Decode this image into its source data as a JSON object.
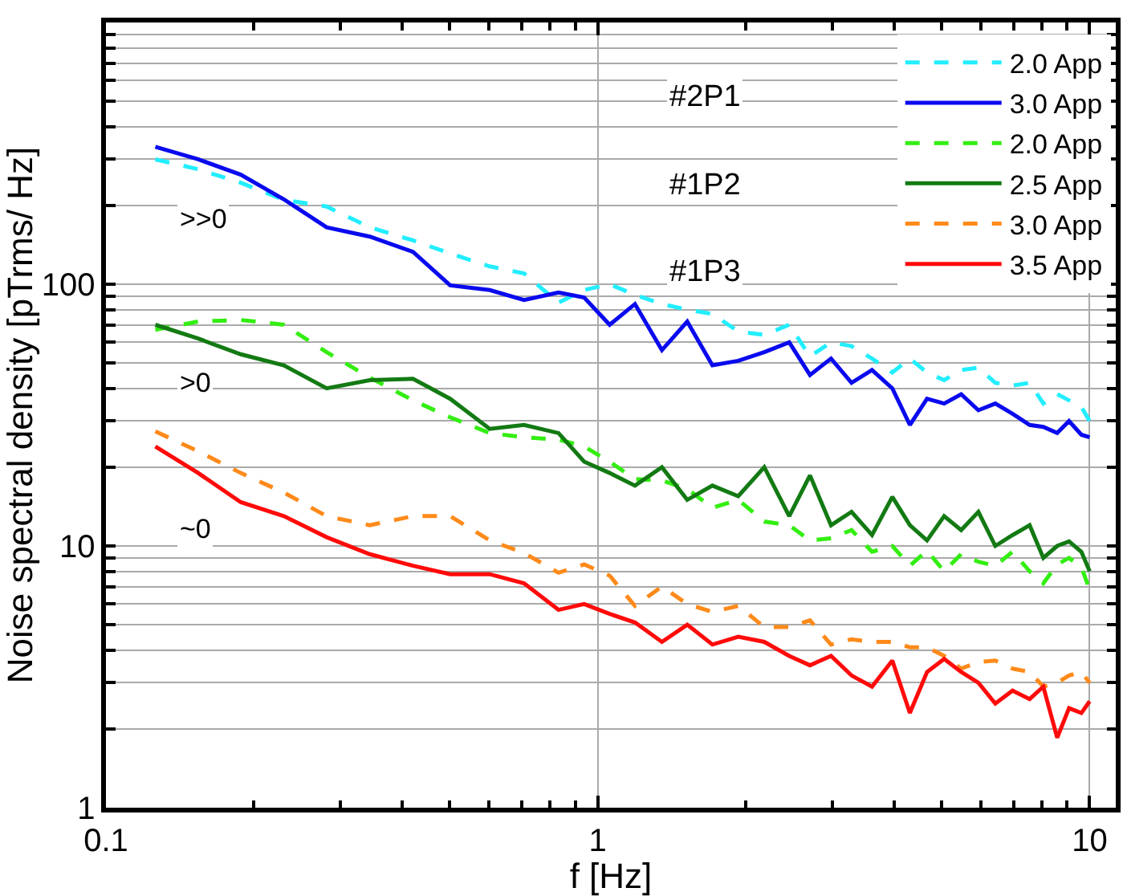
{
  "chart_data": {
    "type": "line",
    "xlabel": "f [Hz]",
    "ylabel": "Noise spectral density [pTrms/ Hz]",
    "log": "xy",
    "xlim": [
      0.1,
      11.3
    ],
    "xticks": [
      0.1,
      1,
      10
    ],
    "ylim": [
      1,
      1000
    ],
    "yticks": [
      1,
      {
        "value": 2,
        "label": null
      },
      {
        "value": 3,
        "label": null
      },
      {
        "value": 4,
        "label": null
      },
      {
        "value": 5,
        "label": null
      },
      {
        "value": 6,
        "label": null
      },
      {
        "value": 7,
        "label": null
      },
      {
        "value": 8,
        "label": null
      },
      {
        "value": 9,
        "label": null
      },
      10,
      {
        "value": 20,
        "label": null
      },
      {
        "value": 30,
        "label": null
      },
      {
        "value": 40,
        "label": null
      },
      {
        "value": 50,
        "label": null
      },
      {
        "value": 60,
        "label": null
      },
      {
        "value": 70,
        "label": null
      },
      {
        "value": 80,
        "label": null
      },
      {
        "value": 90,
        "label": null
      },
      100,
      {
        "value": 200,
        "label": null
      },
      {
        "value": 300,
        "label": null
      },
      {
        "value": 400,
        "label": null
      },
      {
        "value": 500,
        "label": null
      },
      {
        "value": 600,
        "label": null
      },
      {
        "value": 700,
        "label": null
      },
      {
        "value": 800,
        "label": null
      },
      {
        "value": 900,
        "label": null
      }
    ],
    "grid": true,
    "legend": "top right",
    "marker": "none",
    "x": [
      0.126,
      0.154,
      0.188,
      0.23,
      0.281,
      0.344,
      0.421,
      0.501,
      0.603,
      0.708,
      0.832,
      0.938,
      1.057,
      1.19,
      1.35,
      1.52,
      1.71,
      1.93,
      2.18,
      2.45,
      2.7,
      2.98,
      3.28,
      3.61,
      3.97,
      4.31,
      4.67,
      5.06,
      5.48,
      5.94,
      6.43,
      6.97,
      7.55,
      8.05,
      8.59,
      9.08,
      9.62,
      10.0
    ],
    "series": [
      {
        "name": "2.0 App",
        "color": "#22eeff",
        "line_style": "dashed",
        "values": [
          300,
          275,
          244,
          210,
          198,
          165,
          147,
          131,
          117,
          110,
          85,
          95,
          100,
          91,
          84,
          80,
          77,
          66,
          64,
          70,
          53,
          60,
          58,
          52,
          46,
          52,
          46,
          43,
          47,
          48,
          42,
          41,
          42,
          35,
          38,
          36,
          34,
          30
        ]
      },
      {
        "name": "3.0 App",
        "color": "#0a0aee",
        "line_style": "solid",
        "values": [
          335,
          300,
          262,
          211,
          165,
          152,
          133,
          99,
          95,
          87,
          93,
          89,
          70,
          84,
          56,
          72,
          49,
          51,
          55,
          60,
          45,
          52,
          42,
          47,
          40,
          29,
          36.5,
          35,
          38,
          33,
          35,
          32,
          29,
          28.5,
          27,
          30,
          26.6,
          26
        ]
      },
      {
        "name": "2.0 App",
        "color": "#33ee11",
        "line_style": "dashed",
        "values": [
          67,
          72,
          73,
          70,
          55,
          44,
          36,
          31,
          27,
          26,
          25.5,
          24,
          21,
          18,
          17.8,
          16.5,
          14,
          15,
          12.4,
          12,
          10.5,
          10.7,
          11.5,
          9.5,
          10,
          8.4,
          9.6,
          8,
          9.3,
          8.7,
          8.4,
          9.5,
          8,
          7.2,
          8.5,
          9,
          8.3,
          6.8
        ]
      },
      {
        "name": "2.5 App",
        "color": "#137a13",
        "line_style": "solid",
        "values": [
          70,
          62,
          54,
          49,
          40,
          43,
          43.5,
          36.5,
          28,
          29,
          27,
          21,
          19,
          17,
          20,
          15,
          17,
          15.5,
          20,
          13,
          18.6,
          12,
          13.5,
          11,
          15.4,
          12,
          10.5,
          13,
          11.5,
          13.5,
          10,
          11,
          12,
          9,
          10,
          10.4,
          9.5,
          8
        ]
      },
      {
        "name": "3.0 App",
        "color": "#ff8a1a",
        "line_style": "dashed",
        "values": [
          27.4,
          23,
          19,
          16,
          13,
          12,
          13,
          13,
          10.5,
          9.4,
          7.9,
          8.5,
          7.7,
          5.9,
          7,
          6,
          5.6,
          5.9,
          4.9,
          4.9,
          5.2,
          4.2,
          4.4,
          4.3,
          4.3,
          4.1,
          4.1,
          3.8,
          3.4,
          3.6,
          3.65,
          3.4,
          3.3,
          2.9,
          3.0,
          3.2,
          3.3,
          3.0
        ]
      },
      {
        "name": "3.5 App",
        "color": "#ff0a0a",
        "line_style": "solid",
        "values": [
          24,
          19,
          14.7,
          13,
          10.8,
          9.3,
          8.4,
          7.8,
          7.8,
          7.2,
          5.7,
          6,
          5.5,
          5.1,
          4.3,
          5,
          4.2,
          4.5,
          4.3,
          3.8,
          3.5,
          3.8,
          3.2,
          2.9,
          3.65,
          2.3,
          3.3,
          3.7,
          3.3,
          3.0,
          2.5,
          2.8,
          2.6,
          2.9,
          1.85,
          2.4,
          2.3,
          2.55
        ]
      }
    ],
    "annotations": [
      "#2P1",
      "#1P2",
      "#1P3",
      ">>0",
      ">0",
      "~0"
    ]
  }
}
